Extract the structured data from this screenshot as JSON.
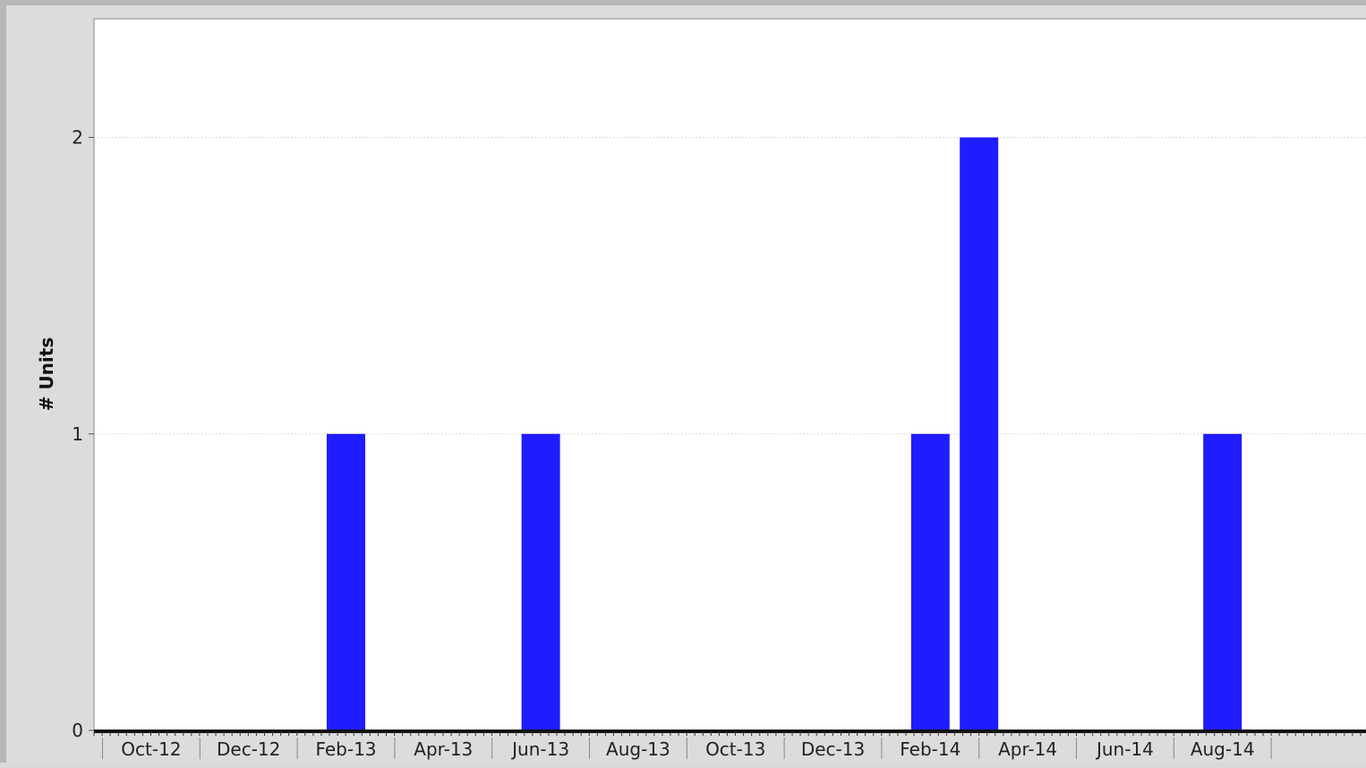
{
  "chart_data": {
    "type": "bar",
    "ylabel": "# Units",
    "xlabel": "",
    "ylim": [
      0,
      2.4
    ],
    "yticks": [
      0,
      1,
      2
    ],
    "x_tick_labels": [
      "Oct-12",
      "Dec-12",
      "Feb-13",
      "Apr-13",
      "Jun-13",
      "Aug-13",
      "Oct-13",
      "Dec-13",
      "Feb-14",
      "Apr-14",
      "Jun-14",
      "Aug-14"
    ],
    "categories": [
      "Sep-12",
      "Oct-12",
      "Nov-12",
      "Dec-12",
      "Jan-13",
      "Feb-13",
      "Mar-13",
      "Apr-13",
      "May-13",
      "Jun-13",
      "Jul-13",
      "Aug-13",
      "Sep-13",
      "Oct-13",
      "Nov-13",
      "Dec-13",
      "Jan-14",
      "Feb-14",
      "Mar-14",
      "Apr-14",
      "May-14",
      "Jun-14",
      "Jul-14",
      "Aug-14",
      "Sep-14"
    ],
    "values": [
      0,
      0,
      0,
      0,
      0,
      1,
      0,
      0,
      0,
      1,
      0,
      0,
      0,
      0,
      0,
      0,
      0,
      1,
      2,
      0,
      0,
      0,
      0,
      1,
      0
    ],
    "grid": true,
    "bar_color": "#1f1cff",
    "legend": "none"
  }
}
